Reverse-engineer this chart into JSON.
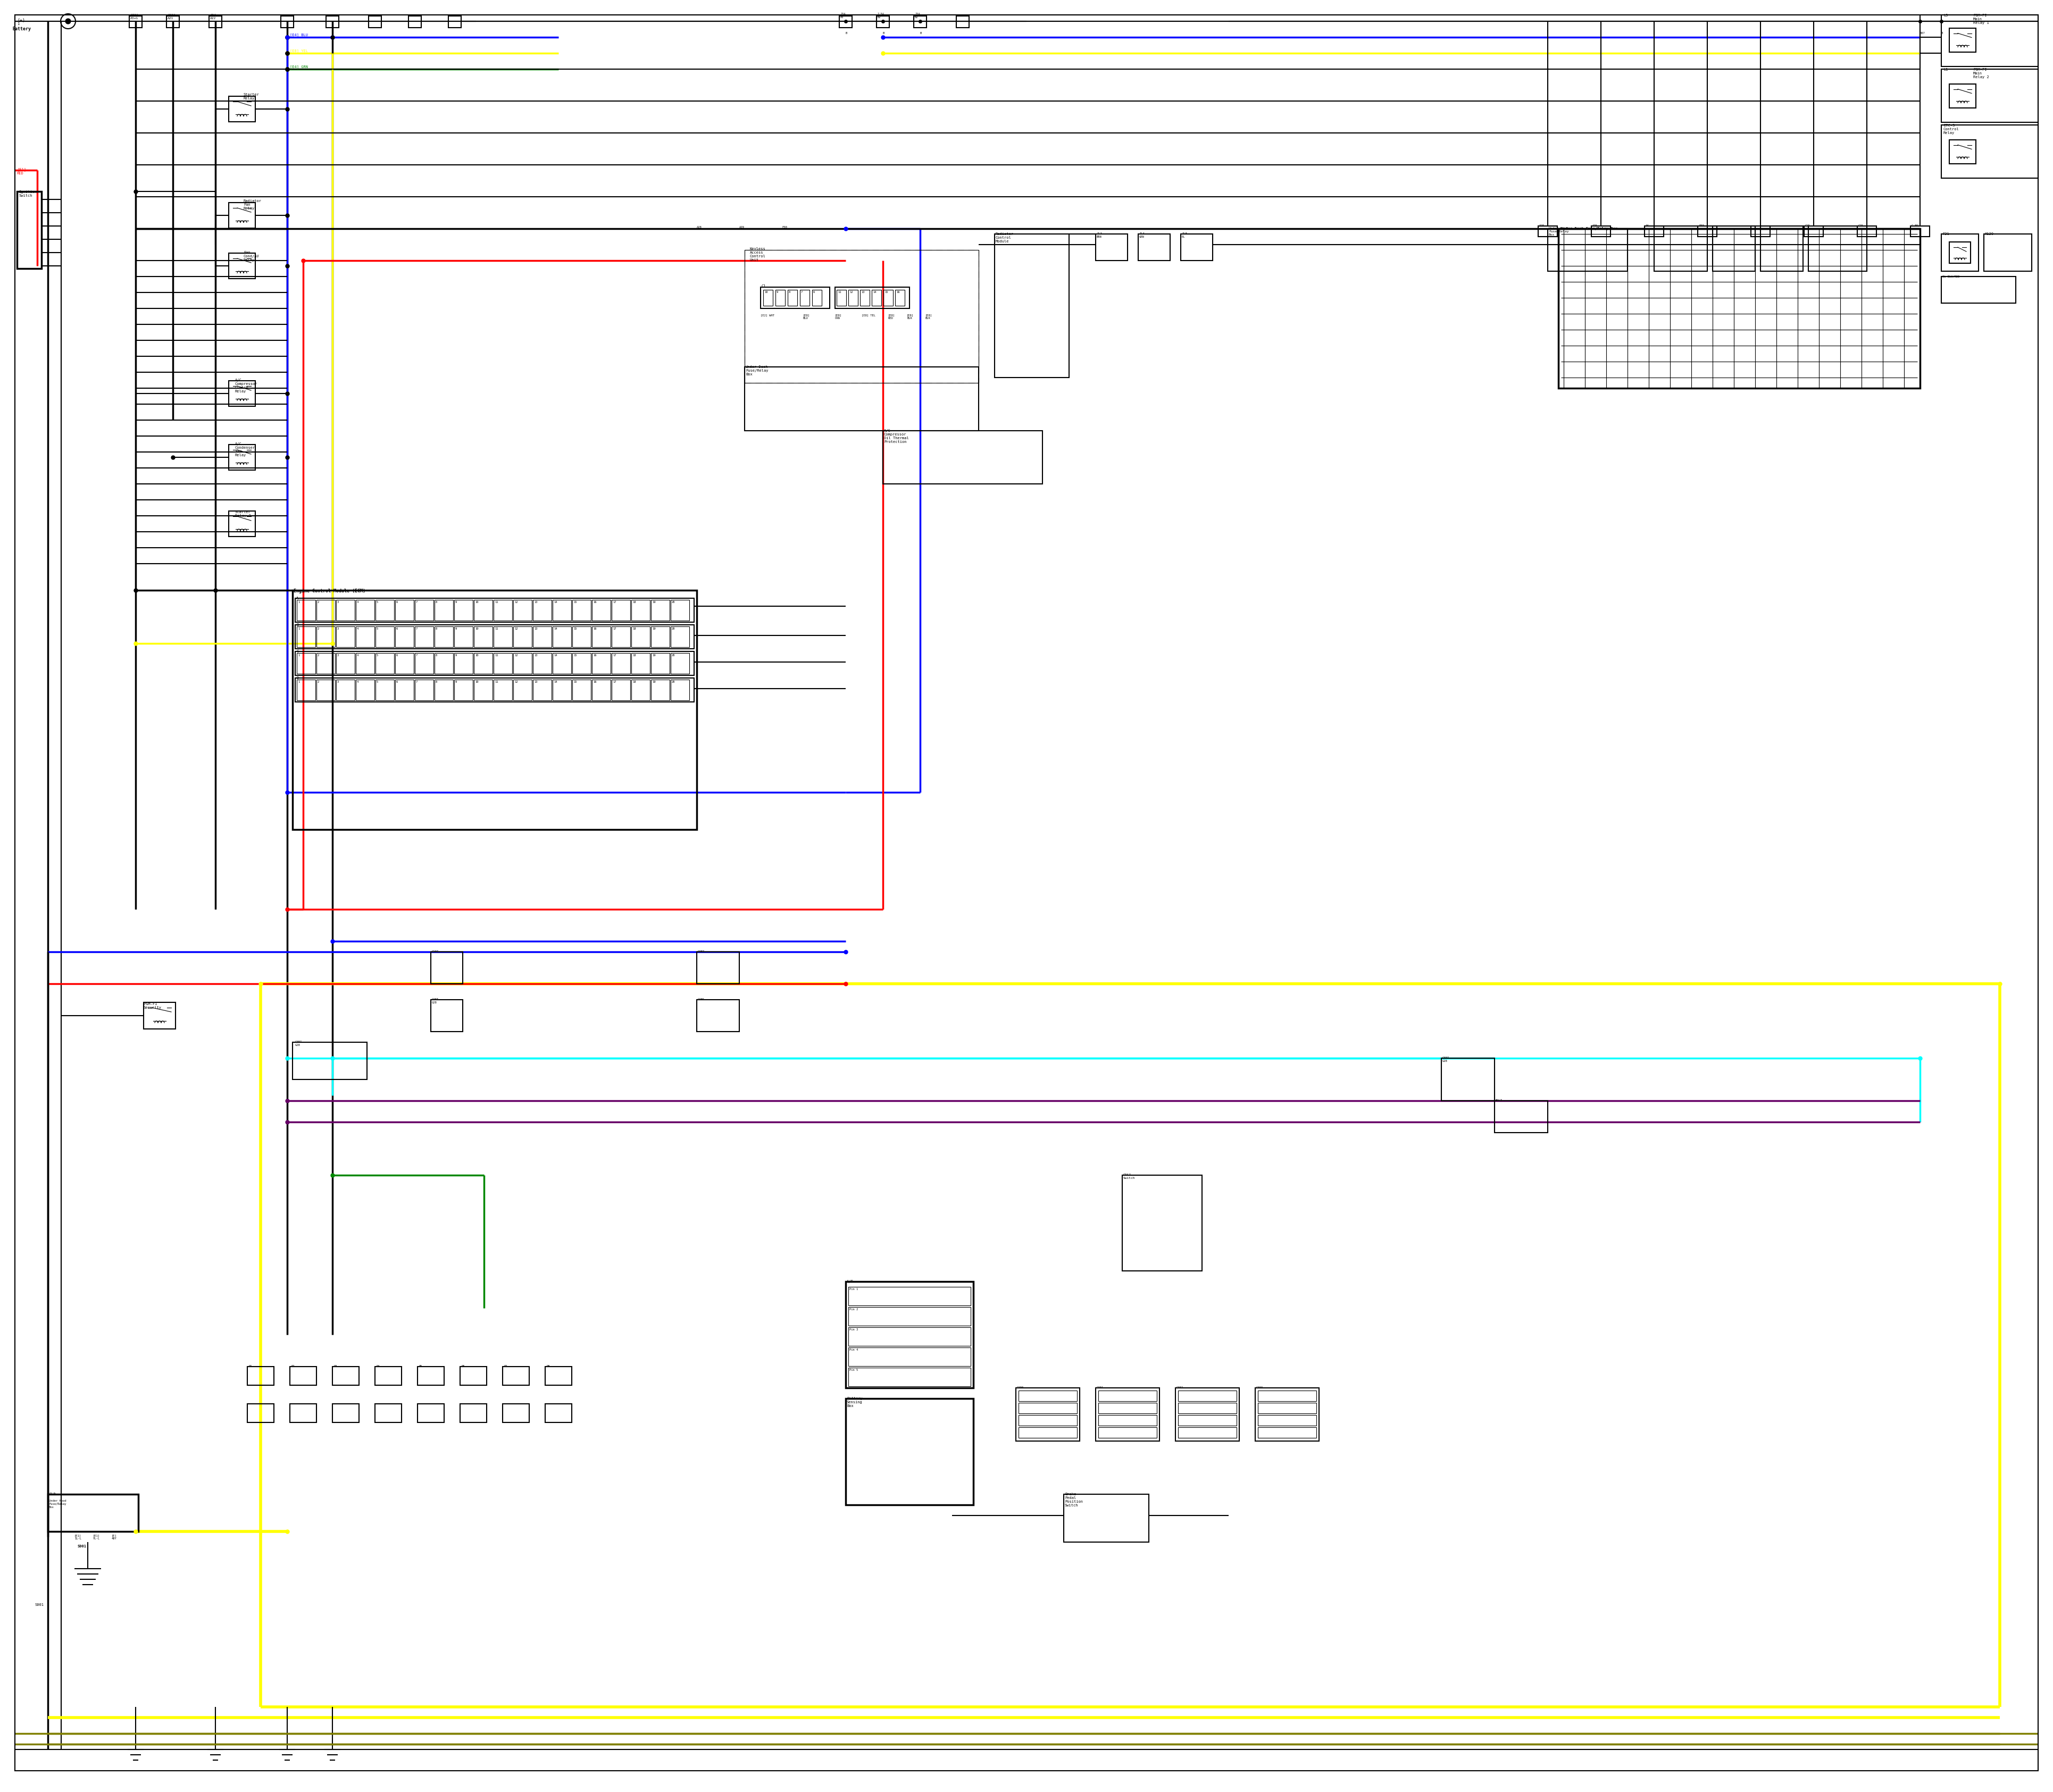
{
  "bg": "#ffffff",
  "BLACK": "#000000",
  "RED": "#ff0000",
  "BLUE": "#0000ff",
  "YELLOW": "#ffff00",
  "CYAN": "#00ffff",
  "GREEN": "#008800",
  "PURPLE": "#660066",
  "OLIVE": "#808000",
  "GRAY": "#aaaaaa",
  "DARKGRAY": "#555555",
  "fig_w": 38.4,
  "fig_h": 33.5
}
